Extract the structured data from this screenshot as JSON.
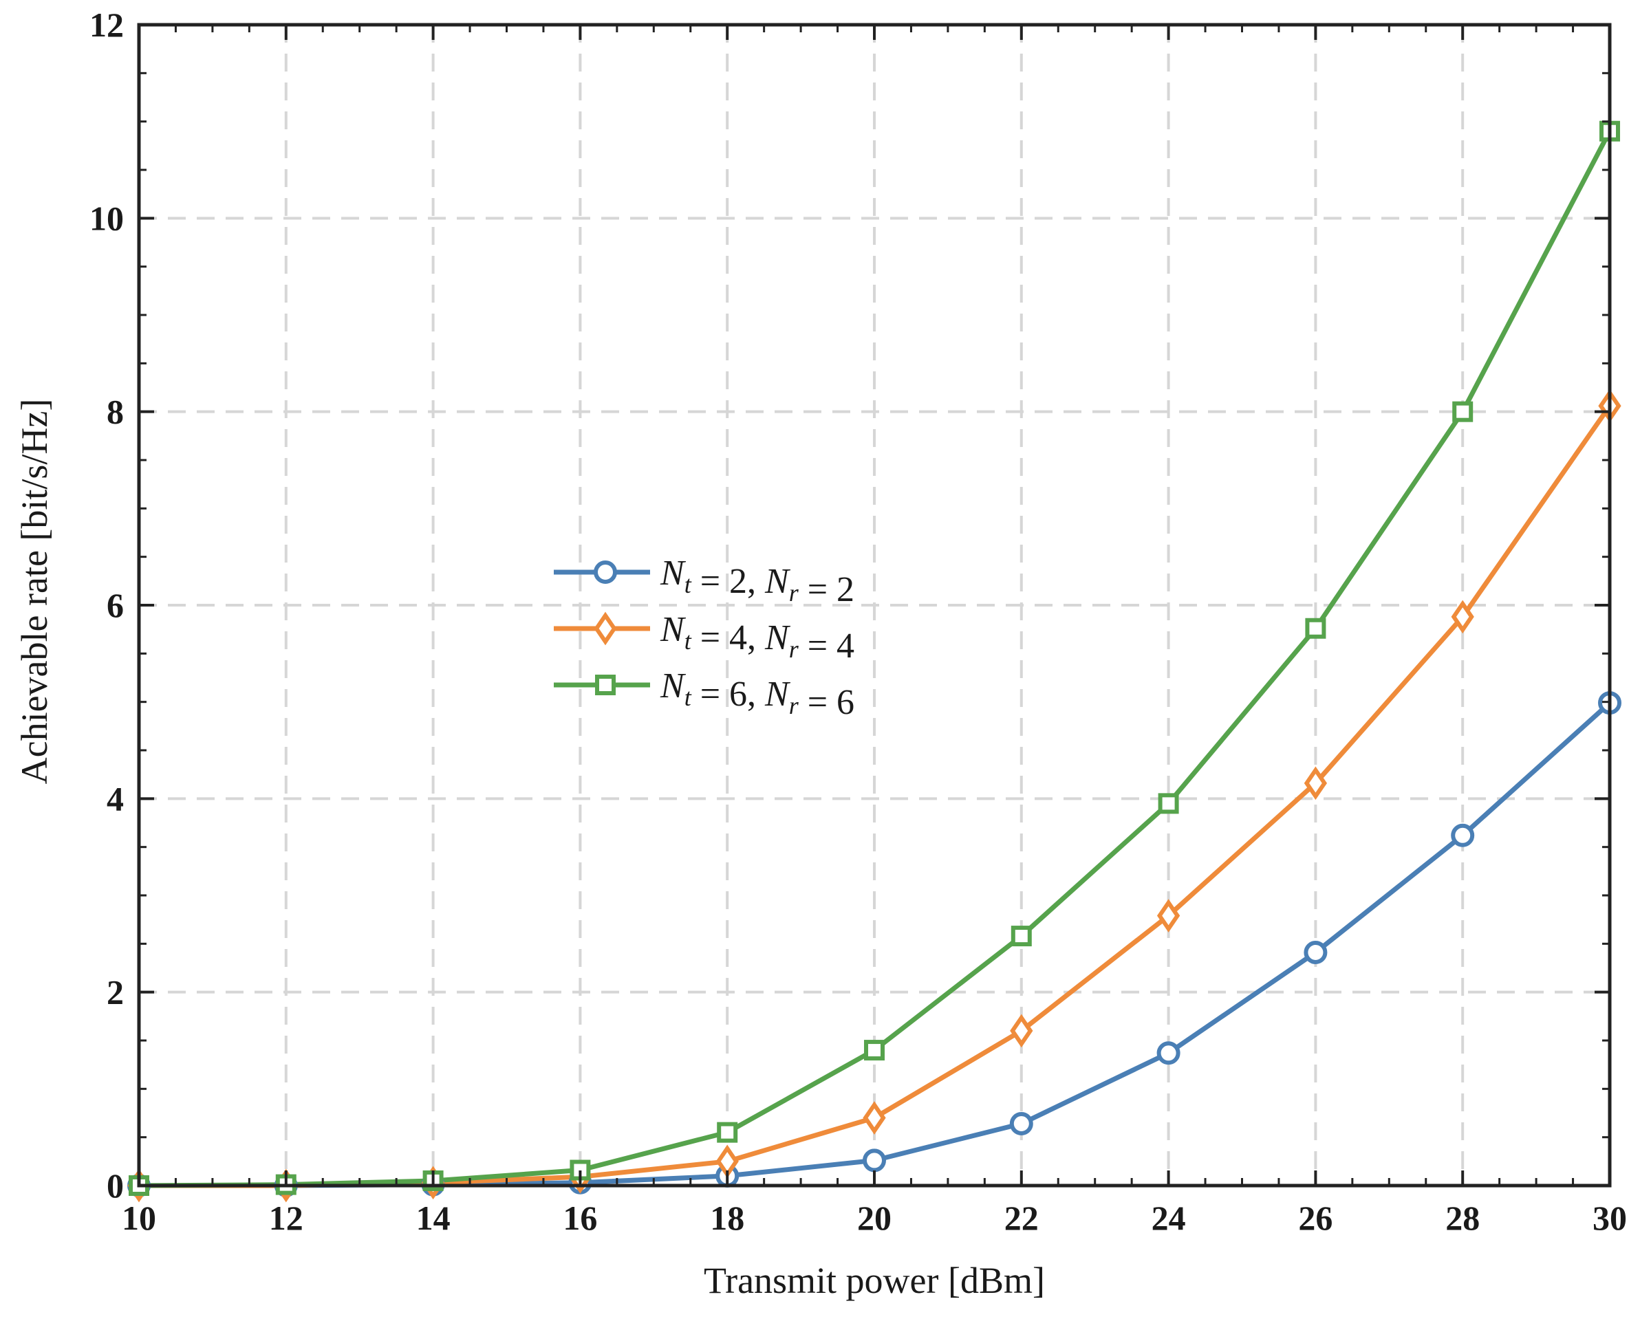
{
  "chart_data": {
    "type": "line",
    "title": "",
    "xlabel": "Transmit power [dBm]",
    "ylabel": "Achievable rate [bit/s/Hz]",
    "xlim": [
      10,
      30
    ],
    "ylim": [
      0,
      12
    ],
    "xticks": [
      10,
      12,
      14,
      16,
      18,
      20,
      22,
      24,
      26,
      28,
      30
    ],
    "yticks": [
      0,
      2,
      4,
      6,
      8,
      10,
      12
    ],
    "grid": true,
    "legend_position": "center-left",
    "x": [
      10,
      12,
      14,
      16,
      18,
      20,
      22,
      24,
      26,
      28,
      30
    ],
    "series": [
      {
        "name": "N_t = 2, N_r = 2",
        "legend": {
          "base1": "N",
          "sub1": "t",
          "mid": " = 2, ",
          "base2": "N",
          "sub2": "r",
          "end": " = 2"
        },
        "marker": "circle",
        "color": "#4a7fb5",
        "values": [
          0.0,
          0.0,
          0.01,
          0.03,
          0.1,
          0.26,
          0.64,
          1.37,
          2.41,
          3.62,
          4.99
        ]
      },
      {
        "name": "N_t = 4, N_r = 4",
        "legend": {
          "base1": "N",
          "sub1": "t",
          "mid": " = 4, ",
          "base2": "N",
          "sub2": "r",
          "end": " = 4"
        },
        "marker": "diamond",
        "color": "#ef8b3a",
        "values": [
          0.0,
          0.0,
          0.03,
          0.09,
          0.25,
          0.7,
          1.6,
          2.79,
          4.16,
          5.88,
          8.06
        ]
      },
      {
        "name": "N_t = 6, N_r = 6",
        "legend": {
          "base1": "N",
          "sub1": "t",
          "mid": " = 6, ",
          "base2": "N",
          "sub2": "r",
          "end": " = 6"
        },
        "marker": "square",
        "color": "#56a34c",
        "values": [
          0.0,
          0.01,
          0.05,
          0.16,
          0.55,
          1.4,
          2.58,
          3.95,
          5.76,
          8.0,
          10.9
        ]
      }
    ]
  }
}
